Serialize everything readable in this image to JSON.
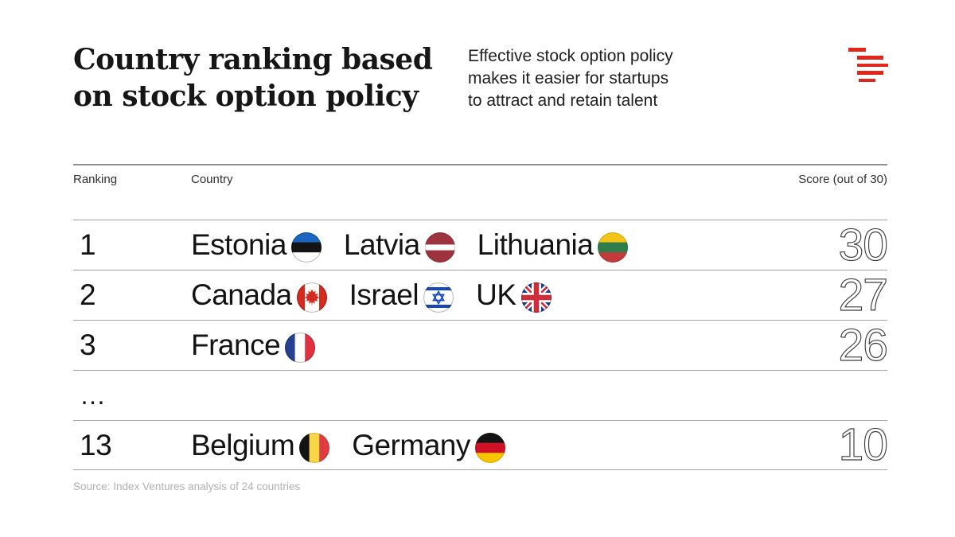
{
  "brand": {
    "red": "#e2261b"
  },
  "header": {
    "title_lines": [
      "Country ranking based",
      "on stock option policy"
    ],
    "subtitle_lines": [
      "Effective stock option policy",
      "makes it easier for startups",
      "to attract and retain talent"
    ]
  },
  "table": {
    "columns": {
      "ranking": "Ranking",
      "country": "Country",
      "score": "Score (out of 30)"
    },
    "rows": [
      {
        "rank": "1",
        "countries": [
          {
            "name": "Estonia",
            "flag": "estonia"
          },
          {
            "name": "Latvia",
            "flag": "latvia"
          },
          {
            "name": "Lithuania",
            "flag": "lithuania"
          }
        ],
        "score": "30",
        "ellipsis": false
      },
      {
        "rank": "2",
        "countries": [
          {
            "name": "Canada",
            "flag": "canada"
          },
          {
            "name": "Israel",
            "flag": "israel"
          },
          {
            "name": "UK",
            "flag": "uk"
          }
        ],
        "score": "27",
        "ellipsis": false
      },
      {
        "rank": "3",
        "countries": [
          {
            "name": "France",
            "flag": "france"
          }
        ],
        "score": "26",
        "ellipsis": false
      },
      {
        "rank": "…",
        "countries": [],
        "score": "",
        "ellipsis": true
      },
      {
        "rank": "13",
        "countries": [
          {
            "name": "Belgium",
            "flag": "belgium"
          },
          {
            "name": "Germany",
            "flag": "germany"
          }
        ],
        "score": "10",
        "ellipsis": false
      }
    ]
  },
  "footer": {
    "source": "Source: Index Ventures analysis of 24 countries"
  },
  "chart_data": {
    "type": "table",
    "title": "Country ranking based on stock option policy",
    "subtitle": "Effective stock option policy makes it easier for startups to attract and retain talent",
    "columns": [
      "Ranking",
      "Country",
      "Score (out of 30)"
    ],
    "score_max": 30,
    "rows": [
      {
        "ranking": 1,
        "countries": [
          "Estonia",
          "Latvia",
          "Lithuania"
        ],
        "score": 30
      },
      {
        "ranking": 2,
        "countries": [
          "Canada",
          "Israel",
          "UK"
        ],
        "score": 27
      },
      {
        "ranking": 3,
        "countries": [
          "France"
        ],
        "score": 26
      },
      {
        "ranking": "…",
        "countries": [],
        "score": null
      },
      {
        "ranking": 13,
        "countries": [
          "Belgium",
          "Germany"
        ],
        "score": 10
      }
    ],
    "source": "Source: Index Ventures analysis of 24 countries"
  }
}
